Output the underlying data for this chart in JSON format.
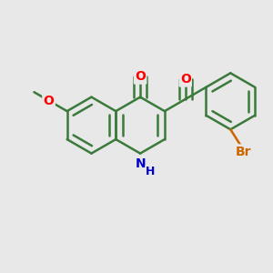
{
  "background_color": "#e8e8e8",
  "bond_color": "#3a7a3a",
  "bond_width": 1.8,
  "dbo": 0.055,
  "atom_colors": {
    "O": "#ff0000",
    "N": "#0000cc",
    "Br": "#cc6600"
  },
  "fs": 10,
  "bl": 0.5
}
